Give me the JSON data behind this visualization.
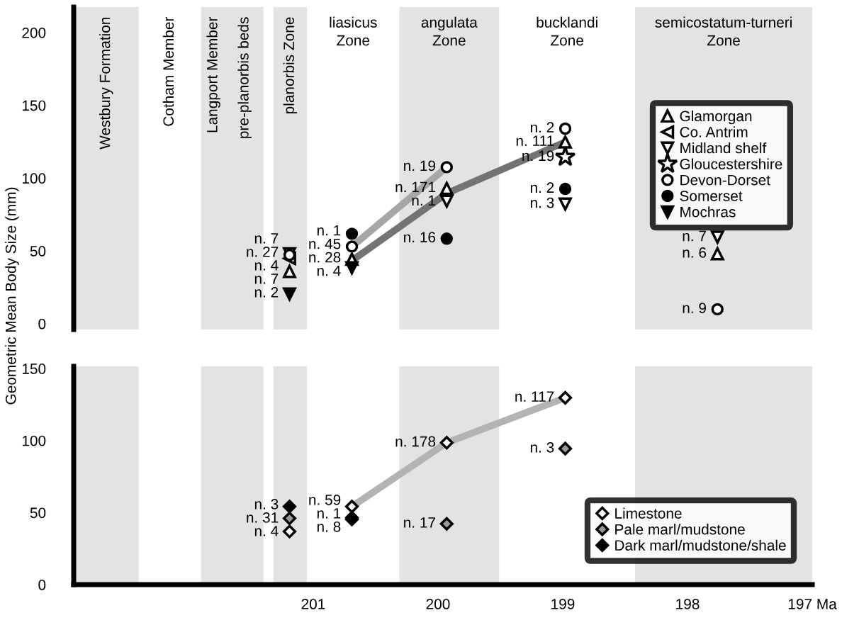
{
  "chart_data": [
    {
      "type": "scatter",
      "ylabel": "Geometric Mean Body Size (mm)",
      "xlim": [
        202.92,
        197
      ],
      "ylim": [
        -4,
        217.5
      ],
      "yticks": [
        0,
        50,
        100,
        150,
        200
      ],
      "tick_labels": "y",
      "grid": false,
      "legend": "top right",
      "bands": [
        {
          "axis": "x",
          "from": 202.92,
          "to": 202.4,
          "label": "Westbury Formation",
          "color": "#e3e3e3"
        },
        {
          "axis": "x",
          "from": 201.9,
          "to": 201.7,
          "label": "Langport Member",
          "color": "#e3e3e3"
        },
        {
          "axis": "x",
          "from": 201.7,
          "to": 201.4,
          "label": "pre-planorbis beds",
          "color": "#e3e3e3"
        },
        {
          "axis": "x",
          "from": 201.32,
          "to": 201.05,
          "label": "planorbis Zone",
          "color": "#e3e3e3"
        },
        {
          "axis": "x",
          "from": 200.31,
          "to": 199.51,
          "label": "angulata\nZone",
          "color": "#e3e3e3"
        },
        {
          "axis": "x",
          "from": 198.42,
          "to": 197,
          "label": "semicostatum-turneri\nZone",
          "color": "#e3e3e3"
        }
      ],
      "series": [
        {
          "type": "line",
          "color": "#a6a6a6",
          "marker": "none",
          "x": [
            200.69,
            199.93
          ],
          "values": [
            53,
            107.5
          ]
        },
        {
          "type": "line",
          "color": "#737373",
          "marker": "none",
          "x": [
            200.69,
            199.93,
            198.98
          ],
          "values": [
            43.3,
            89.5,
            124.8
          ]
        },
        {
          "name": "Glamorgan",
          "marker": "triangle",
          "color": "#ffffff",
          "x": [
            201.19,
            200.69,
            199.93,
            198.98,
            197.76
          ],
          "values": [
            35.9,
            44.3,
            92.9,
            124.8,
            48
          ]
        },
        {
          "name": "Co. Antrim",
          "marker": "triangle-left",
          "color": "#ffffff",
          "x": [
            201.19
          ],
          "values": [
            44.8
          ]
        },
        {
          "name": "Midland shelf",
          "marker": "triangle-down",
          "color": "#ffffff",
          "x": [
            201.19,
            199.93,
            198.98,
            197.76
          ],
          "values": [
            48,
            84.2,
            82.2,
            59.4
          ]
        },
        {
          "name": "Gloucestershire",
          "marker": "star",
          "color": "#ffffff",
          "x": [
            198.98
          ],
          "values": [
            114.5
          ]
        },
        {
          "name": "Devon-Dorset",
          "marker": "circle",
          "color": "#ffffff",
          "x": [
            201.19,
            200.69,
            199.93,
            198.98,
            197.76
          ],
          "values": [
            47.2,
            53,
            107.5,
            134,
            9.9
          ]
        },
        {
          "name": "Somerset",
          "marker": "circle",
          "color": "#000000",
          "x": [
            200.69,
            199.93,
            198.98
          ],
          "values": [
            61.8,
            58.4,
            92.6
          ]
        },
        {
          "name": "Mochras",
          "marker": "triangle-down",
          "color": "#000000",
          "x": [
            201.19,
            200.69
          ],
          "values": [
            20.4,
            38.4
          ]
        }
      ],
      "annotations": [
        "Cotham Member",
        "liasicus\nZone",
        "bucklandi\nZone",
        {
          "text": "n. 7",
          "x": 201.19,
          "y": 48
        },
        {
          "text": "n. 27",
          "x": 201.19,
          "y": 47.2
        },
        {
          "text": "n. 4",
          "x": 201.19,
          "y": 44.8
        },
        {
          "text": "n. 7",
          "x": 201.19,
          "y": 35.9
        },
        {
          "text": "n. 2",
          "x": 201.19,
          "y": 20.4
        },
        {
          "text": "n. 1",
          "x": 200.69,
          "y": 61.8
        },
        {
          "text": "n. 45",
          "x": 200.69,
          "y": 53
        },
        {
          "text": "n. 28",
          "x": 200.69,
          "y": 44.3
        },
        {
          "text": "n. 4",
          "x": 200.69,
          "y": 38.4
        },
        {
          "text": "n. 19",
          "x": 199.93,
          "y": 107.5
        },
        {
          "text": "n. 171",
          "x": 199.93,
          "y": 92.9
        },
        {
          "text": "n. 1",
          "x": 199.93,
          "y": 84.2
        },
        {
          "text": "n. 16",
          "x": 199.93,
          "y": 58.4
        },
        {
          "text": "n. 2",
          "x": 198.98,
          "y": 134
        },
        {
          "text": "n. 111",
          "x": 198.98,
          "y": 124.8
        },
        {
          "text": "n. 19",
          "x": 198.98,
          "y": 114.5
        },
        {
          "text": "n. 2",
          "x": 198.98,
          "y": 92.6
        },
        {
          "text": "n. 3",
          "x": 198.98,
          "y": 82.2
        },
        {
          "text": "n. 7",
          "x": 197.76,
          "y": 59.4
        },
        {
          "text": "n. 6",
          "x": 197.76,
          "y": 48
        },
        {
          "text": "n. 9",
          "x": 197.76,
          "y": 9.9
        }
      ]
    },
    {
      "type": "scatter",
      "xlim": [
        202.92,
        197
      ],
      "ylim": [
        0,
        151.5
      ],
      "yticks": [
        0,
        50,
        100,
        150
      ],
      "xticks": [
        201,
        200,
        199,
        198,
        {
          "value": 197,
          "label": "197 Ma"
        }
      ],
      "grid": false,
      "legend": "bottom right",
      "bands": [
        {
          "axis": "x",
          "from": 202.92,
          "to": 202.4,
          "color": "#e3e3e3"
        },
        {
          "axis": "x",
          "from": 201.9,
          "to": 201.4,
          "color": "#e3e3e3"
        },
        {
          "axis": "x",
          "from": 201.32,
          "to": 201.05,
          "color": "#e3e3e3"
        },
        {
          "axis": "x",
          "from": 200.31,
          "to": 199.51,
          "color": "#e3e3e3"
        },
        {
          "axis": "x",
          "from": 198.42,
          "to": 197,
          "color": "#e3e3e3"
        }
      ],
      "series": [
        {
          "type": "line",
          "color": "#b3b3b3",
          "marker": "none",
          "x": [
            200.69,
            199.93,
            198.98
          ],
          "values": [
            54.2,
            98.5,
            129.7
          ]
        },
        {
          "name": "Limestone",
          "marker": "diamond",
          "color": "#ffffff",
          "x": [
            201.19,
            200.69,
            199.93,
            198.98
          ],
          "values": [
            36.9,
            54.2,
            98.5,
            129.7
          ]
        },
        {
          "name": "Pale marl/mudstone",
          "marker": "diamond",
          "color": "#999999",
          "x": [
            201.19,
            200.69,
            199.93,
            198.98
          ],
          "values": [
            46,
            45.3,
            42.2,
            94.4
          ]
        },
        {
          "name": "Dark marl/mudstone/shale",
          "marker": "diamond",
          "color": "#000000",
          "x": [
            201.19,
            200.69
          ],
          "values": [
            54.2,
            46.5
          ]
        }
      ],
      "annotations": [
        {
          "text": "n. 3",
          "x": 201.19,
          "y": 54.2
        },
        {
          "text": "n. 31",
          "x": 201.19,
          "y": 46
        },
        {
          "text": "n. 4",
          "x": 201.19,
          "y": 36.9
        },
        {
          "text": "n. 59",
          "x": 200.69,
          "y": 54.2
        },
        {
          "text": "n. 1",
          "x": 200.69,
          "y": 46.5
        },
        {
          "text": "n. 8",
          "x": 200.69,
          "y": 45.3
        },
        {
          "text": "n. 178",
          "x": 199.93,
          "y": 98.5
        },
        {
          "text": "n. 17",
          "x": 199.93,
          "y": 42.2
        },
        {
          "text": "n. 117",
          "x": 198.98,
          "y": 129.7
        },
        {
          "text": "n. 3",
          "x": 198.98,
          "y": 94.4
        }
      ]
    }
  ]
}
